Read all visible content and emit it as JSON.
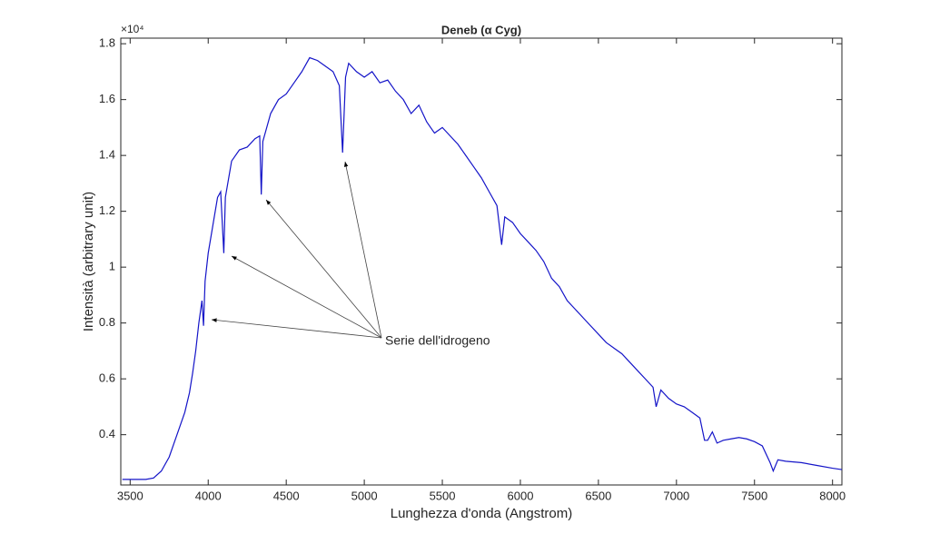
{
  "chart_data": {
    "type": "line",
    "title": "Deneb (α Cyg)",
    "x_label": "Lunghezza d'onda (Angstrom)",
    "y_label": "Intensità (arbitrary unit)",
    "y_scale_label": "×10⁴",
    "annotation": "Serie dell'idrogeno",
    "xlim": [
      3440,
      8060
    ],
    "ylim": [
      0.22,
      1.82
    ],
    "xticks": [
      3500,
      4000,
      4500,
      5000,
      5500,
      6000,
      6500,
      7000,
      7500,
      8000
    ],
    "yticks": [
      0.4,
      0.6,
      0.8,
      1,
      1.2,
      1.4,
      1.6,
      1.8
    ],
    "x": [
      3450,
      3600,
      3650,
      3700,
      3750,
      3800,
      3850,
      3880,
      3900,
      3920,
      3940,
      3960,
      3970,
      3980,
      4000,
      4030,
      4060,
      4080,
      4100,
      4110,
      4150,
      4200,
      4250,
      4300,
      4330,
      4340,
      4350,
      4400,
      4450,
      4500,
      4550,
      4600,
      4650,
      4700,
      4750,
      4800,
      4840,
      4861,
      4880,
      4900,
      4950,
      5000,
      5050,
      5100,
      5150,
      5200,
      5250,
      5300,
      5350,
      5400,
      5450,
      5500,
      5550,
      5600,
      5650,
      5700,
      5750,
      5800,
      5850,
      5880,
      5900,
      5950,
      6000,
      6050,
      6100,
      6150,
      6200,
      6250,
      6300,
      6350,
      6400,
      6450,
      6500,
      6550,
      6600,
      6650,
      6700,
      6750,
      6800,
      6850,
      6870,
      6900,
      6950,
      7000,
      7050,
      7100,
      7150,
      7180,
      7200,
      7230,
      7260,
      7300,
      7350,
      7400,
      7450,
      7500,
      7550,
      7600,
      7620,
      7650,
      7700,
      7800,
      7900,
      8000,
      8060
    ],
    "series": [
      {
        "name": "Deneb",
        "color": "#1414c8",
        "values": [
          0.24,
          0.24,
          0.245,
          0.27,
          0.32,
          0.4,
          0.48,
          0.55,
          0.62,
          0.7,
          0.8,
          0.88,
          0.79,
          0.95,
          1.05,
          1.15,
          1.25,
          1.27,
          1.05,
          1.25,
          1.38,
          1.42,
          1.43,
          1.46,
          1.47,
          1.26,
          1.45,
          1.55,
          1.6,
          1.62,
          1.66,
          1.7,
          1.75,
          1.74,
          1.72,
          1.7,
          1.65,
          1.41,
          1.68,
          1.73,
          1.7,
          1.68,
          1.7,
          1.66,
          1.67,
          1.63,
          1.6,
          1.55,
          1.58,
          1.52,
          1.48,
          1.5,
          1.47,
          1.44,
          1.4,
          1.36,
          1.32,
          1.27,
          1.22,
          1.08,
          1.18,
          1.16,
          1.12,
          1.09,
          1.06,
          1.02,
          0.96,
          0.93,
          0.88,
          0.85,
          0.82,
          0.79,
          0.76,
          0.73,
          0.71,
          0.69,
          0.66,
          0.63,
          0.6,
          0.57,
          0.5,
          0.56,
          0.53,
          0.51,
          0.5,
          0.48,
          0.46,
          0.38,
          0.38,
          0.41,
          0.37,
          0.38,
          0.385,
          0.39,
          0.385,
          0.375,
          0.36,
          0.3,
          0.27,
          0.31,
          0.305,
          0.3,
          0.29,
          0.28,
          0.275
        ]
      }
    ]
  }
}
